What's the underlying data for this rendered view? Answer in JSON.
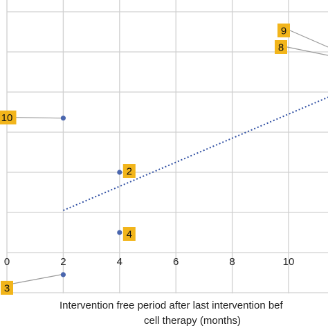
{
  "chart_data": {
    "type": "scatter",
    "title": "",
    "xlabel": [
      "Intervention free period after last intervention bef",
      "cell therapy (months)"
    ],
    "ylabel": "",
    "x_ticks": [
      "0",
      "2",
      "4",
      "6",
      "8",
      "10"
    ],
    "x_gridlines": [
      0,
      2,
      4,
      6,
      8,
      10
    ],
    "y_gridlines": [
      -1,
      0,
      1,
      2,
      3,
      4,
      5,
      6
    ],
    "xlim": [
      0,
      11.5
    ],
    "ylim": [
      -1.2,
      6.5
    ],
    "grid": true,
    "legend": "none",
    "series": [
      {
        "points": [
          {
            "x": 2,
            "y": 3.35,
            "label": "10"
          },
          {
            "x": 4,
            "y": 2.0,
            "label": "2"
          },
          {
            "x": 4,
            "y": 0.5,
            "label": "4"
          },
          {
            "x": 2,
            "y": -0.55,
            "label": "3"
          }
        ]
      }
    ],
    "offscreen_labels": [
      "9",
      "8"
    ],
    "trendline": {
      "type": "linear",
      "style": "dotted",
      "from": [
        2,
        1.05
      ],
      "to": [
        11.5,
        3.9
      ]
    },
    "colors": {
      "marker": "#4a66ae",
      "trendline": "#2f4fa3",
      "label_fill": "#f2b51b",
      "grid": "#d0d0d0",
      "leader": "#9a9a9a"
    }
  }
}
